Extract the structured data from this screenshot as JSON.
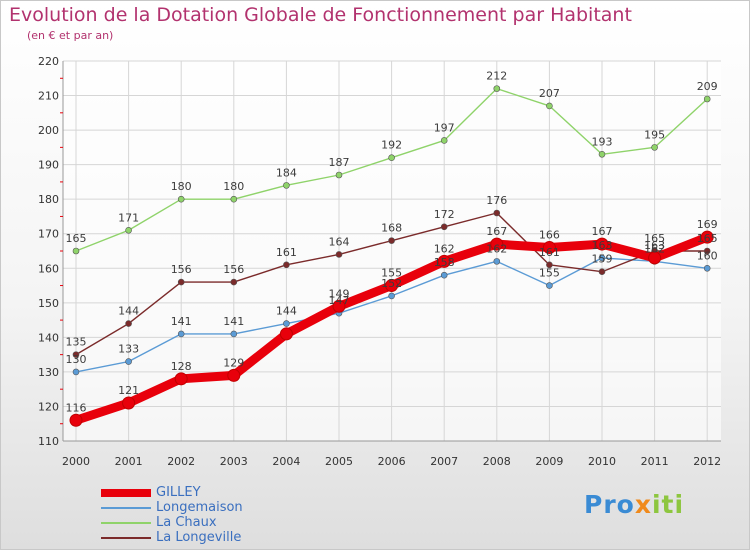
{
  "chart_data": {
    "type": "line",
    "title": "Evolution de la Dotation Globale de Fonctionnement par Habitant",
    "subtitle": "(en € et par an)",
    "xlabel": "",
    "ylabel": "",
    "categories": [
      "2000",
      "2001",
      "2002",
      "2003",
      "2004",
      "2005",
      "2006",
      "2007",
      "2008",
      "2009",
      "2010",
      "2011",
      "2012"
    ],
    "ylim": [
      110,
      220
    ],
    "yticks": [
      110,
      120,
      130,
      140,
      150,
      160,
      170,
      180,
      190,
      200,
      210,
      220
    ],
    "grid": true,
    "legend_position": "bottom-left",
    "series": [
      {
        "name": "GILLEY",
        "color": "#e8000b",
        "values": [
          116,
          121,
          128,
          129,
          141,
          149,
          155,
          162,
          167,
          166,
          167,
          163,
          169
        ],
        "labels": [
          "116",
          "121",
          "128",
          "129",
          "",
          "149",
          "155",
          "162",
          "167",
          "166",
          "167",
          "163",
          "169"
        ]
      },
      {
        "name": "Longemaison",
        "color": "#5b9bd5",
        "values": [
          130,
          133,
          141,
          141,
          144,
          147,
          152,
          158,
          162,
          155,
          163,
          162,
          160
        ],
        "labels": [
          "130",
          "133",
          "141",
          "141",
          "144",
          "147",
          "152",
          "158",
          "162",
          "155",
          "163",
          "162",
          "160"
        ]
      },
      {
        "name": "La Chaux",
        "color": "#8fd36a",
        "values": [
          165,
          171,
          180,
          180,
          184,
          187,
          192,
          197,
          212,
          207,
          193,
          195,
          209
        ],
        "labels": [
          "165",
          "171",
          "180",
          "180",
          "184",
          "187",
          "192",
          "197",
          "212",
          "207",
          "193",
          "195",
          "209"
        ]
      },
      {
        "name": "La Longeville",
        "color": "#7b2b2b",
        "values": [
          135,
          144,
          156,
          156,
          161,
          164,
          168,
          172,
          176,
          161,
          159,
          165,
          165
        ],
        "labels": [
          "135",
          "144",
          "156",
          "156",
          "161",
          "164",
          "168",
          "172",
          "176",
          "161",
          "159",
          "165",
          "165"
        ]
      }
    ]
  },
  "legend": [
    {
      "name": "GILLEY",
      "color": "#e8000b"
    },
    {
      "name": "Longemaison",
      "color": "#5b9bd5"
    },
    {
      "name": "La Chaux",
      "color": "#8fd36a"
    },
    {
      "name": "La Longeville",
      "color": "#7b2b2b"
    }
  ],
  "logo": {
    "part1": "Pro",
    "part2": "x",
    "part3": "iti"
  }
}
